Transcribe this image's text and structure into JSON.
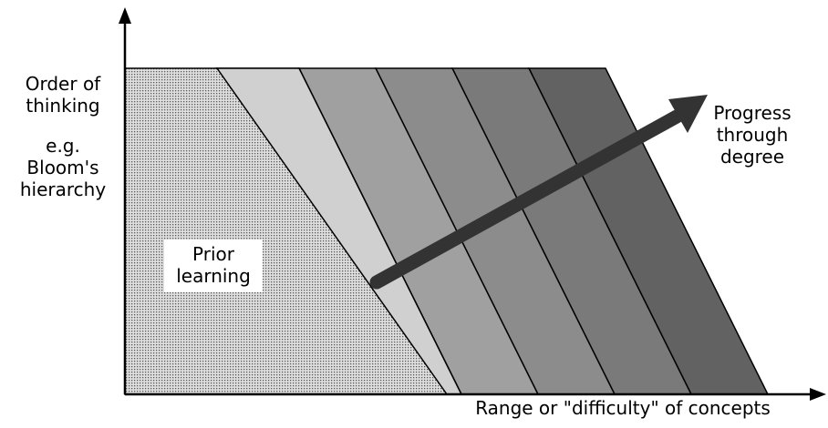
{
  "y_axis": {
    "label_lines": [
      "Order of",
      "thinking"
    ],
    "example_lines": [
      "e.g.",
      "Bloom's",
      "hierarchy"
    ]
  },
  "x_axis": {
    "label": "Range or \"difficulty\" of concepts"
  },
  "regions": {
    "prior_learning_lines": [
      "Prior",
      "learning"
    ],
    "band_colors": [
      "#d0d0d0",
      "#b2b2b2",
      "#a0a0a0",
      "#8c8c8c",
      "#7a7a7a",
      "#626262"
    ],
    "prior_fill": "#c8c8c8"
  },
  "arrow": {
    "label_lines": [
      "Progress",
      "through",
      "degree"
    ],
    "color": "#333333"
  }
}
